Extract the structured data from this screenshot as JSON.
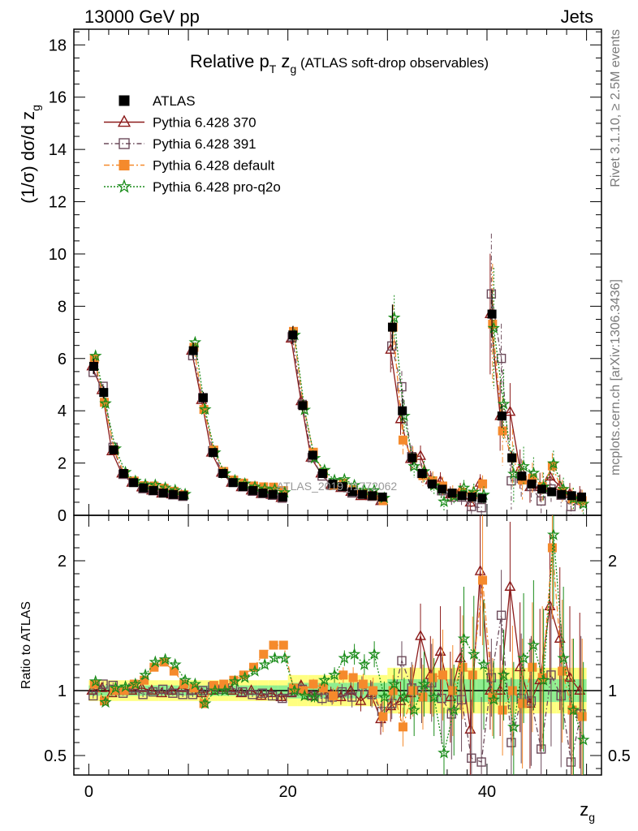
{
  "header": {
    "left": "13000 GeV pp",
    "right": "Jets"
  },
  "side_labels": {
    "rivet": "Rivet 3.1.10, ≥ 2.5M events",
    "mcplots": "mcplots.cern.ch [arXiv:1306.3436]"
  },
  "watermark": "ATLAS_2019_I1772062",
  "chart_data": {
    "type": "scatter",
    "title_parts": {
      "a": "Relative p",
      "a_sub": "T",
      "b": " z",
      "b_sub": "g",
      "c": " (ATLAS soft-drop observables)"
    },
    "ylabel_parts": {
      "main": "(1/σ) dσ/d z",
      "sub": "g"
    },
    "ratio_ylabel": "Ratio to ATLAS",
    "xlabel_parts": {
      "main": "z",
      "sub": "g"
    },
    "xlim": [
      -1.5,
      51.5
    ],
    "ylim": [
      0,
      18.6
    ],
    "ratio_ylim": [
      0.35,
      2.35
    ],
    "x_ticks": [
      {
        "value": 0,
        "label": "0"
      },
      {
        "value": 20,
        "label": "20"
      },
      {
        "value": 40,
        "label": "40"
      }
    ],
    "y_ticks": [
      {
        "value": 0,
        "label": "0"
      },
      {
        "value": 2,
        "label": "2"
      },
      {
        "value": 4,
        "label": "4"
      },
      {
        "value": 6,
        "label": "6"
      },
      {
        "value": 8,
        "label": "8"
      },
      {
        "value": 10,
        "label": "10"
      },
      {
        "value": 12,
        "label": "12"
      },
      {
        "value": 14,
        "label": "14"
      },
      {
        "value": 16,
        "label": "16"
      },
      {
        "value": 18,
        "label": "18"
      }
    ],
    "ratio_ticks": [
      {
        "value": 0.5,
        "label": "0.5"
      },
      {
        "value": 1,
        "label": "1"
      },
      {
        "value": 2,
        "label": "2"
      }
    ],
    "x": [
      0.5,
      1.5,
      2.5,
      3.5,
      4.5,
      5.5,
      6.5,
      7.5,
      8.5,
      9.5,
      10.5,
      11.5,
      12.5,
      13.5,
      14.5,
      15.5,
      16.5,
      17.5,
      18.5,
      19.5,
      20.5,
      21.5,
      22.5,
      23.5,
      24.5,
      25.5,
      26.5,
      27.5,
      28.5,
      29.5,
      30.5,
      31.5,
      32.5,
      33.5,
      34.5,
      35.5,
      36.5,
      37.5,
      38.5,
      39.5,
      40.5,
      41.5,
      42.5,
      43.5,
      44.5,
      45.5,
      46.5,
      47.5,
      48.5,
      49.5
    ],
    "series": [
      {
        "name": "ATLAS",
        "color": "#000000",
        "marker": "filled-square",
        "values": [
          5.7,
          4.7,
          2.5,
          1.6,
          1.25,
          1.05,
          0.95,
          0.85,
          0.8,
          0.75,
          6.3,
          4.5,
          2.4,
          1.6,
          1.25,
          1.1,
          0.95,
          0.85,
          0.8,
          0.7,
          6.9,
          4.2,
          2.3,
          1.6,
          1.2,
          1.1,
          0.9,
          0.8,
          0.75,
          0.7,
          7.2,
          4.0,
          2.2,
          1.6,
          1.2,
          1.0,
          0.85,
          0.75,
          0.7,
          0.65,
          7.7,
          3.8,
          2.2,
          1.5,
          1.2,
          1.0,
          0.9,
          0.8,
          0.75,
          0.7
        ],
        "ratio_band_inner": 0.04,
        "ratio_band_outer": 0.08
      },
      {
        "name": "Pythia 6.428 370",
        "color": "#8b1a1a",
        "marker": "open-triangle",
        "ratios": [
          1.0,
          1.02,
          0.98,
          1.0,
          1.0,
          1.02,
          1.0,
          0.98,
          1.0,
          1.02,
          1.0,
          0.98,
          1.0,
          1.02,
          1.0,
          0.98,
          1.0,
          0.96,
          0.98,
          0.95,
          0.98,
          1.04,
          0.96,
          1.0,
          0.97,
          0.95,
          1.0,
          0.92,
          0.98,
          0.78,
          0.88,
          0.92,
          0.98,
          1.42,
          1.12,
          1.3,
          0.95,
          1.25,
          0.7,
          1.92,
          1.0,
          1.0,
          1.8,
          1.18,
          0.9,
          1.08,
          1.65,
          1.4,
          1.1,
          1.0
        ],
        "errors": [
          0.02,
          0.02,
          0.02,
          0.02,
          0.02,
          0.02,
          0.02,
          0.02,
          0.02,
          0.02,
          0.02,
          0.02,
          0.02,
          0.02,
          0.02,
          0.02,
          0.02,
          0.03,
          0.03,
          0.03,
          0.03,
          0.03,
          0.04,
          0.05,
          0.06,
          0.06,
          0.08,
          0.08,
          0.1,
          0.12,
          0.12,
          0.15,
          0.2,
          0.25,
          0.3,
          0.35,
          0.35,
          0.4,
          0.45,
          0.5,
          0.3,
          0.35,
          0.5,
          0.5,
          0.5,
          0.55,
          0.55,
          0.55,
          0.55,
          0.6
        ]
      },
      {
        "name": "Pythia 6.428 391",
        "color": "#6b4a5a",
        "marker": "open-square",
        "ratios": [
          0.96,
          1.05,
          1.04,
          0.98,
          1.02,
          0.97,
          0.99,
          1.01,
          0.98,
          0.97,
          0.97,
          1.0,
          1.03,
          1.01,
          1.02,
          0.99,
          0.97,
          0.98,
          0.96,
          0.94,
          0.99,
          1.01,
          0.96,
          0.94,
          0.95,
          0.99,
          0.95,
          1.03,
          0.97,
          0.84,
          0.9,
          1.23,
          1.02,
          1.0,
          1.06,
          0.94,
          0.82,
          0.93,
          0.48,
          0.45,
          1.1,
          1.58,
          0.6,
          0.94,
          0.92,
          0.55,
          1.12,
          0.96,
          0.45,
          0.82
        ],
        "errors": [
          0.02,
          0.02,
          0.02,
          0.02,
          0.02,
          0.02,
          0.02,
          0.02,
          0.02,
          0.02,
          0.02,
          0.02,
          0.02,
          0.02,
          0.02,
          0.02,
          0.02,
          0.03,
          0.03,
          0.03,
          0.03,
          0.03,
          0.04,
          0.05,
          0.06,
          0.06,
          0.08,
          0.08,
          0.1,
          0.12,
          0.12,
          0.15,
          0.2,
          0.25,
          0.3,
          0.35,
          0.35,
          0.4,
          0.45,
          0.5,
          0.3,
          0.35,
          0.5,
          0.5,
          0.5,
          0.55,
          0.55,
          0.55,
          0.55,
          0.6
        ]
      },
      {
        "name": "Pythia 6.428 default",
        "color": "#f58a2c",
        "marker": "filled-square",
        "ratios": [
          1.05,
          0.92,
          1.0,
          1.0,
          1.05,
          1.08,
          1.18,
          1.22,
          1.15,
          1.05,
          1.02,
          0.9,
          1.04,
          1.05,
          1.08,
          1.12,
          1.18,
          1.28,
          1.35,
          1.35,
          1.02,
          1.0,
          1.05,
          1.02,
          0.96,
          1.12,
          1.1,
          1.05,
          1.0,
          0.8,
          1.0,
          0.72,
          1.0,
          0.95,
          1.1,
          1.12,
          1.0,
          1.18,
          1.12,
          1.85,
          0.95,
          0.85,
          1.0,
          0.9,
          1.18,
          1.1,
          2.1,
          1.15,
          0.85,
          0.8
        ],
        "errors": [
          0.02,
          0.02,
          0.02,
          0.02,
          0.02,
          0.02,
          0.02,
          0.02,
          0.02,
          0.02,
          0.02,
          0.02,
          0.02,
          0.02,
          0.02,
          0.02,
          0.02,
          0.03,
          0.03,
          0.03,
          0.03,
          0.03,
          0.04,
          0.05,
          0.06,
          0.06,
          0.08,
          0.08,
          0.1,
          0.12,
          0.12,
          0.15,
          0.2,
          0.25,
          0.3,
          0.35,
          0.35,
          0.4,
          0.45,
          0.5,
          0.3,
          0.35,
          0.5,
          0.5,
          0.5,
          0.55,
          0.55,
          0.55,
          0.55,
          0.6
        ]
      },
      {
        "name": "Pythia 6.428 pro-q2o",
        "color": "#1a8c1a",
        "marker": "open-star",
        "ratios": [
          1.07,
          0.91,
          1.02,
          1.03,
          1.05,
          1.12,
          1.22,
          1.24,
          1.2,
          1.08,
          1.05,
          0.9,
          1.0,
          1.0,
          1.07,
          1.1,
          1.15,
          1.2,
          1.25,
          1.25,
          1.0,
          0.96,
          0.95,
          1.08,
          1.12,
          1.25,
          1.28,
          1.2,
          1.28,
          0.95,
          1.05,
          0.95,
          0.85,
          1.05,
          0.95,
          0.52,
          0.85,
          1.4,
          1.28,
          1.2,
          0.93,
          1.12,
          0.72,
          1.25,
          1.35,
          1.08,
          2.2,
          1.25,
          0.85,
          0.62
        ],
        "errors": [
          0.02,
          0.02,
          0.02,
          0.02,
          0.02,
          0.02,
          0.02,
          0.02,
          0.02,
          0.02,
          0.02,
          0.02,
          0.02,
          0.02,
          0.02,
          0.02,
          0.02,
          0.03,
          0.03,
          0.03,
          0.03,
          0.03,
          0.04,
          0.05,
          0.06,
          0.06,
          0.08,
          0.08,
          0.1,
          0.12,
          0.12,
          0.15,
          0.2,
          0.25,
          0.3,
          0.35,
          0.35,
          0.4,
          0.45,
          0.5,
          0.3,
          0.35,
          0.5,
          0.5,
          0.5,
          0.55,
          0.55,
          0.55,
          0.55,
          0.6
        ]
      }
    ]
  }
}
